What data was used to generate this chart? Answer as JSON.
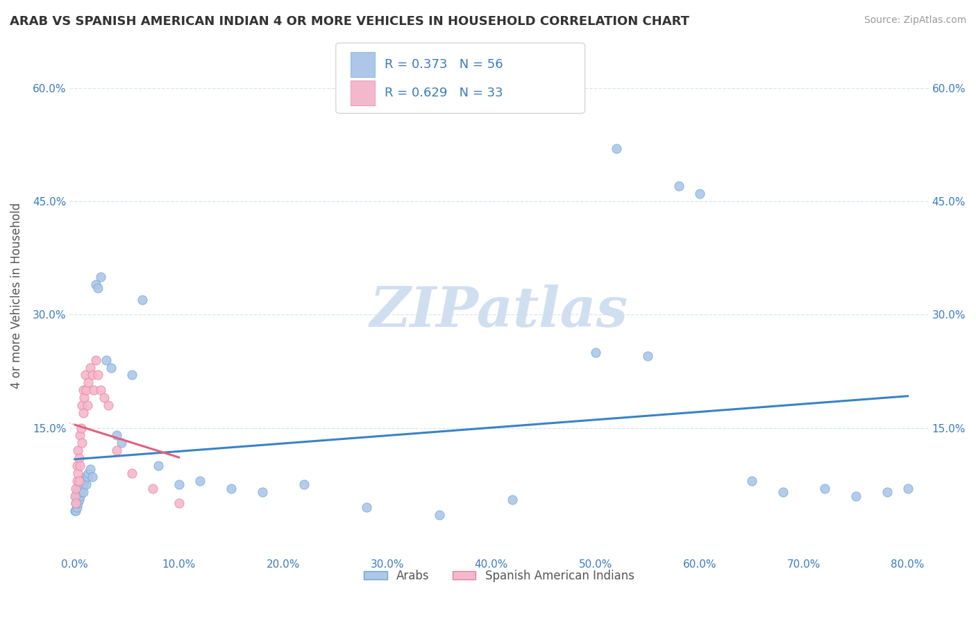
{
  "title": "ARAB VS SPANISH AMERICAN INDIAN 4 OR MORE VEHICLES IN HOUSEHOLD CORRELATION CHART",
  "source": "Source: ZipAtlas.com",
  "ylabel": "4 or more Vehicles in Household",
  "xlim": [
    -0.005,
    0.82
  ],
  "ylim": [
    -0.02,
    0.67
  ],
  "xticks": [
    0.0,
    0.1,
    0.2,
    0.3,
    0.4,
    0.5,
    0.6,
    0.7,
    0.8
  ],
  "xticklabels": [
    "0.0%",
    "10.0%",
    "20.0%",
    "30.0%",
    "40.0%",
    "50.0%",
    "60.0%",
    "70.0%",
    "80.0%"
  ],
  "yticks_left": [
    0.15,
    0.3,
    0.45,
    0.6
  ],
  "yticks_right": [
    0.15,
    0.3,
    0.45,
    0.6
  ],
  "yticklabels": [
    "15.0%",
    "30.0%",
    "45.0%",
    "60.0%"
  ],
  "arab_color": "#aec6e8",
  "arab_edge": "#6aaad4",
  "sai_color": "#f4b8cc",
  "sai_edge": "#e8809a",
  "arab_R": 0.373,
  "arab_N": 56,
  "sai_R": 0.629,
  "sai_N": 33,
  "watermark": "ZIPatlas",
  "watermark_color": "#d0dff0",
  "background_color": "#ffffff",
  "grid_color": "#d8e4ee",
  "arab_line_color": "#3a82c8",
  "sai_line_color": "#e06080",
  "arab_x": [
    0.0005,
    0.001,
    0.001,
    0.001,
    0.002,
    0.002,
    0.002,
    0.003,
    0.003,
    0.003,
    0.004,
    0.004,
    0.005,
    0.005,
    0.006,
    0.006,
    0.007,
    0.007,
    0.008,
    0.008,
    0.009,
    0.01,
    0.011,
    0.012,
    0.013,
    0.015,
    0.017,
    0.02,
    0.022,
    0.025,
    0.03,
    0.035,
    0.04,
    0.045,
    0.055,
    0.065,
    0.08,
    0.1,
    0.12,
    0.15,
    0.18,
    0.22,
    0.28,
    0.35,
    0.42,
    0.5,
    0.52,
    0.55,
    0.58,
    0.6,
    0.65,
    0.68,
    0.72,
    0.75,
    0.78,
    0.8
  ],
  "arab_y": [
    0.04,
    0.05,
    0.06,
    0.04,
    0.055,
    0.065,
    0.045,
    0.06,
    0.07,
    0.05,
    0.065,
    0.055,
    0.07,
    0.06,
    0.075,
    0.065,
    0.07,
    0.08,
    0.075,
    0.065,
    0.08,
    0.085,
    0.075,
    0.085,
    0.09,
    0.095,
    0.085,
    0.34,
    0.335,
    0.35,
    0.24,
    0.23,
    0.14,
    0.13,
    0.22,
    0.32,
    0.1,
    0.075,
    0.08,
    0.07,
    0.065,
    0.075,
    0.045,
    0.035,
    0.055,
    0.25,
    0.52,
    0.245,
    0.47,
    0.46,
    0.08,
    0.065,
    0.07,
    0.06,
    0.065,
    0.07
  ],
  "sai_x": [
    0.0005,
    0.001,
    0.001,
    0.002,
    0.002,
    0.003,
    0.003,
    0.004,
    0.004,
    0.005,
    0.005,
    0.006,
    0.007,
    0.007,
    0.008,
    0.008,
    0.009,
    0.01,
    0.011,
    0.012,
    0.013,
    0.015,
    0.017,
    0.018,
    0.02,
    0.022,
    0.025,
    0.028,
    0.032,
    0.04,
    0.055,
    0.075,
    0.1
  ],
  "sai_y": [
    0.06,
    0.05,
    0.07,
    0.08,
    0.1,
    0.09,
    0.12,
    0.11,
    0.08,
    0.14,
    0.1,
    0.15,
    0.13,
    0.18,
    0.17,
    0.2,
    0.19,
    0.22,
    0.2,
    0.18,
    0.21,
    0.23,
    0.22,
    0.2,
    0.24,
    0.22,
    0.2,
    0.19,
    0.18,
    0.12,
    0.09,
    0.07,
    0.05
  ]
}
